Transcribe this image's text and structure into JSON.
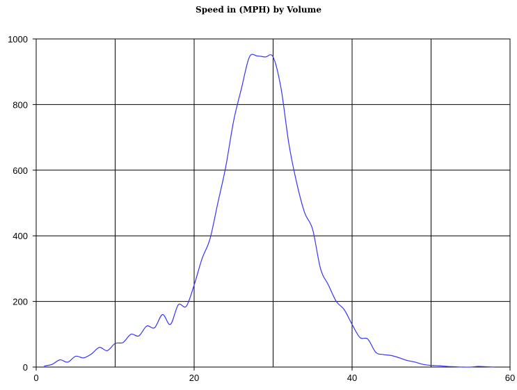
{
  "chart_data": {
    "type": "line",
    "title": "Speed in (MPH) by Volume",
    "xlabel": "",
    "ylabel": "",
    "xlim": [
      0,
      60
    ],
    "ylim": [
      0,
      1000
    ],
    "x_ticks": [
      0,
      20,
      40,
      60
    ],
    "y_ticks": [
      0,
      200,
      400,
      600,
      800,
      1000
    ],
    "grid": true,
    "line_color": "#3333ff",
    "series": [
      {
        "x": [
          1,
          2,
          3,
          4,
          5,
          6,
          7,
          8,
          9,
          10,
          11,
          12,
          13,
          14,
          15,
          16,
          17,
          18,
          19,
          20,
          21,
          22,
          23,
          24,
          25,
          26,
          27,
          28,
          29,
          30,
          31,
          32,
          33,
          34,
          35,
          36,
          37,
          38,
          39,
          40,
          41,
          42,
          43,
          44,
          45,
          46,
          47,
          48,
          49,
          50,
          51,
          52,
          53,
          54,
          55,
          56,
          57,
          58
        ],
        "y": [
          3,
          8,
          22,
          15,
          33,
          28,
          40,
          60,
          50,
          72,
          75,
          100,
          95,
          125,
          120,
          160,
          130,
          190,
          185,
          250,
          330,
          390,
          500,
          610,
          750,
          850,
          945,
          948,
          945,
          945,
          850,
          680,
          560,
          470,
          420,
          300,
          250,
          200,
          175,
          130,
          90,
          85,
          45,
          38,
          35,
          28,
          20,
          15,
          8,
          5,
          4,
          2,
          1,
          0,
          0,
          2,
          1,
          0
        ]
      }
    ]
  }
}
